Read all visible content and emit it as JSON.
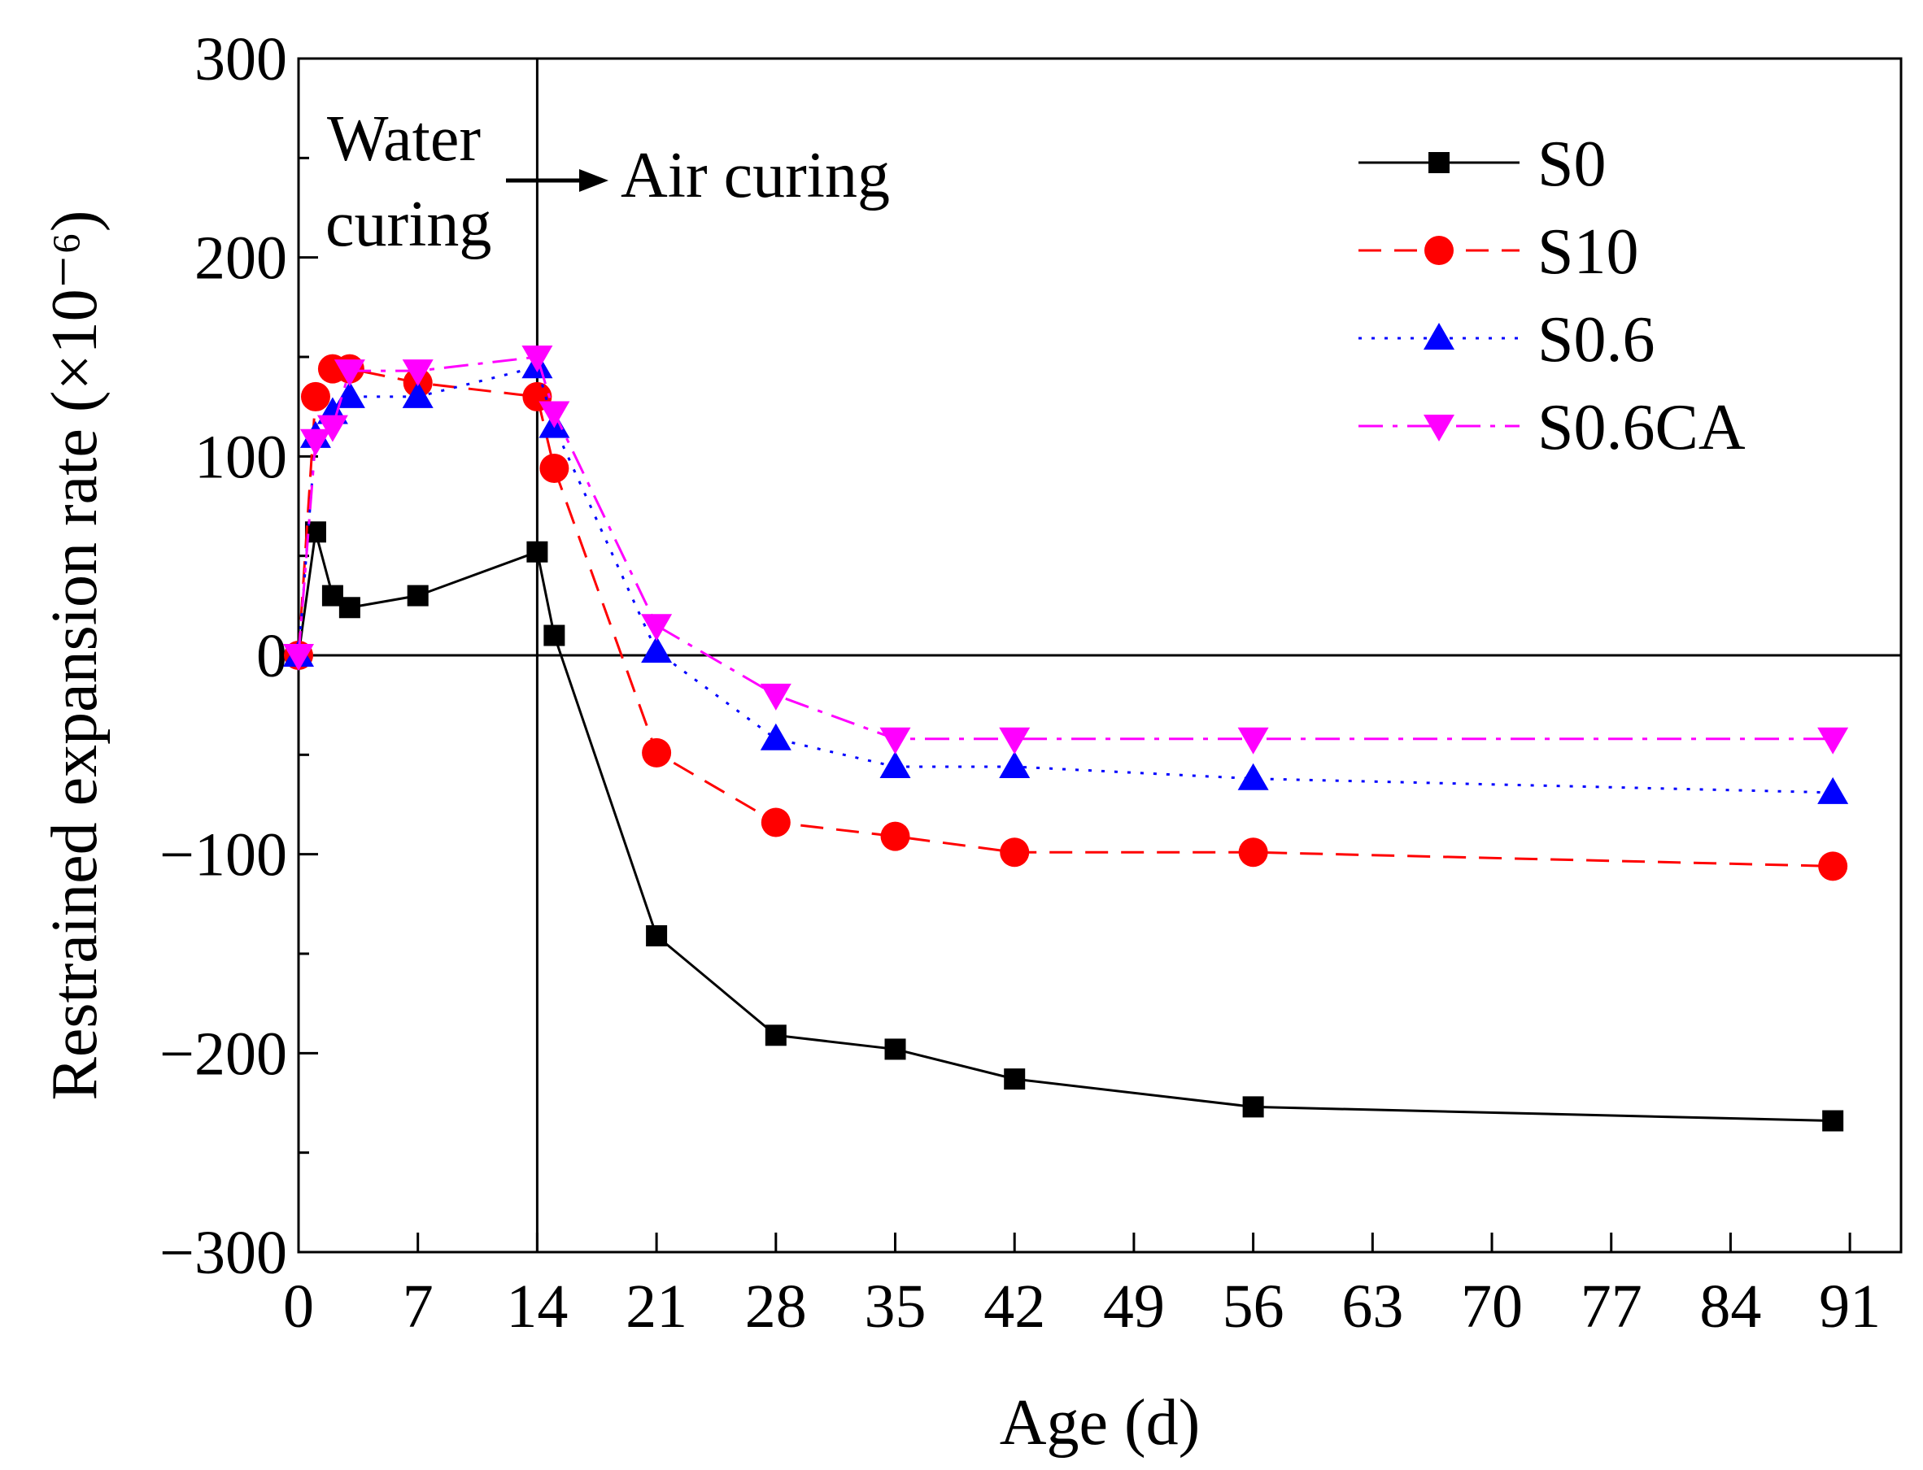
{
  "chart_data": {
    "type": "line",
    "title": "",
    "xlabel": "Age (d)",
    "ylabel": "Restrained expansion rate (×10⁻⁶)",
    "xlim": [
      0,
      94
    ],
    "ylim": [
      -300,
      300
    ],
    "xticks": [
      0,
      7,
      14,
      21,
      28,
      35,
      42,
      49,
      56,
      63,
      70,
      77,
      84,
      91
    ],
    "yticks": [
      -300,
      -200,
      -100,
      0,
      100,
      200,
      300
    ],
    "xtick_labels": [
      "0",
      "7",
      "14",
      "21",
      "28",
      "35",
      "42",
      "49",
      "56",
      "63",
      "70",
      "77",
      "84",
      "91"
    ],
    "ytick_labels": [
      "−300",
      "−200",
      "−100",
      "0",
      "100",
      "200",
      "300"
    ],
    "grid": false,
    "legend_position": "top-right",
    "annotations": {
      "water_curing_line1": "Water",
      "water_curing_line2": "curing",
      "air_curing": "Air curing",
      "divider_x": 14,
      "zero_line_y": 0
    },
    "series": [
      {
        "name": "S0",
        "color": "#000000",
        "marker": "square",
        "dash": "solid",
        "x": [
          0,
          1,
          2,
          3,
          7,
          14,
          15,
          21,
          28,
          35,
          42,
          56,
          90
        ],
        "values": [
          0,
          62,
          30,
          24,
          30,
          52,
          10,
          -141,
          -191,
          -198,
          -213,
          -227,
          -234
        ]
      },
      {
        "name": "S10",
        "color": "#ff0000",
        "marker": "circle",
        "dash": "dashed",
        "x": [
          0,
          1,
          2,
          3,
          7,
          14,
          15,
          21,
          28,
          35,
          42,
          56,
          90
        ],
        "values": [
          0,
          130,
          144,
          144,
          137,
          130,
          94,
          -49,
          -84,
          -91,
          -99,
          -99,
          -106
        ]
      },
      {
        "name": "S0.6",
        "color": "#0000ff",
        "marker": "triangle-up",
        "dash": "dotted",
        "x": [
          0,
          1,
          2,
          3,
          7,
          14,
          15,
          21,
          28,
          35,
          42,
          56,
          90
        ],
        "values": [
          0,
          110,
          122,
          130,
          130,
          145,
          115,
          2,
          -42,
          -56,
          -56,
          -62,
          -69
        ]
      },
      {
        "name": "S0.6CA",
        "color": "#ff00ff",
        "marker": "triangle-down",
        "dash": "dashdot",
        "x": [
          0,
          1,
          2,
          3,
          7,
          14,
          15,
          21,
          28,
          35,
          42,
          56,
          90
        ],
        "values": [
          0,
          108,
          115,
          143,
          143,
          150,
          122,
          15,
          -20,
          -42,
          -42,
          -42,
          -42
        ]
      }
    ]
  }
}
